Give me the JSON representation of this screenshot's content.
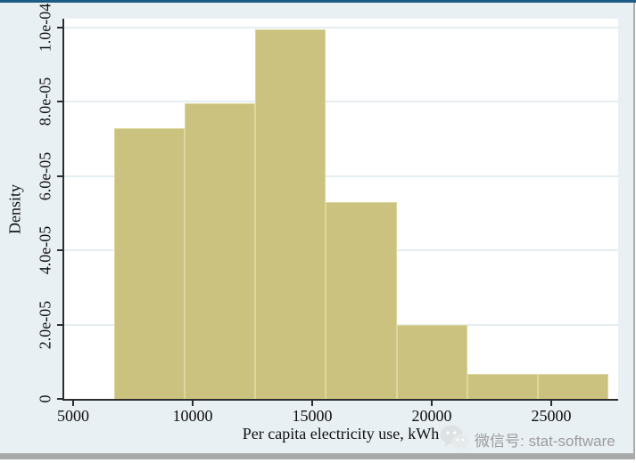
{
  "window": {
    "top_border_color": "#1d5c85",
    "background_color": "#e9f0f3",
    "plot_background_color": "#ffffff",
    "bottom_bar_color": "#a7aaa9"
  },
  "chart_data": {
    "type": "bar",
    "subtype": "histogram",
    "title": "",
    "xlabel": "Per capita electricity use, kWh",
    "ylabel": "Density",
    "xlim": [
      4627,
      27800
    ],
    "ylim": [
      0,
      0.0001024
    ],
    "grid": true,
    "legend": false,
    "bar_color": "#cac27e",
    "bar_border_color": "#ddd79e",
    "grid_color": "#e4eef1",
    "bin_start": 6700,
    "bin_width": 2957,
    "bins": [
      {
        "x0": 6700,
        "x1": 9657,
        "density": 7.29e-05
      },
      {
        "x0": 9657,
        "x1": 12614,
        "density": 7.96e-05
      },
      {
        "x0": 12614,
        "x1": 15571,
        "density": 9.95e-05
      },
      {
        "x0": 15571,
        "x1": 18528,
        "density": 5.3e-05
      },
      {
        "x0": 18528,
        "x1": 21485,
        "density": 1.99e-05
      },
      {
        "x0": 21485,
        "x1": 24442,
        "density": 6.6e-06
      },
      {
        "x0": 24442,
        "x1": 27399,
        "density": 6.6e-06
      }
    ],
    "xticks": [
      {
        "value": 5000,
        "label": "5000"
      },
      {
        "value": 10000,
        "label": "10000"
      },
      {
        "value": 15000,
        "label": "15000"
      },
      {
        "value": 20000,
        "label": "20000"
      },
      {
        "value": 25000,
        "label": "25000"
      }
    ],
    "yticks": [
      {
        "value": 0,
        "label": "0"
      },
      {
        "value": 2e-05,
        "label": "2.0e-05"
      },
      {
        "value": 4e-05,
        "label": "4.0e-05"
      },
      {
        "value": 6e-05,
        "label": "6.0e-05"
      },
      {
        "value": 8e-05,
        "label": "8.0e-05"
      },
      {
        "value": 0.0001,
        "label": "1.0e-04"
      }
    ]
  },
  "watermark": {
    "icon": "wechat-icon",
    "text": "微信号: stat-software",
    "text_color": "#9c9c9c"
  }
}
